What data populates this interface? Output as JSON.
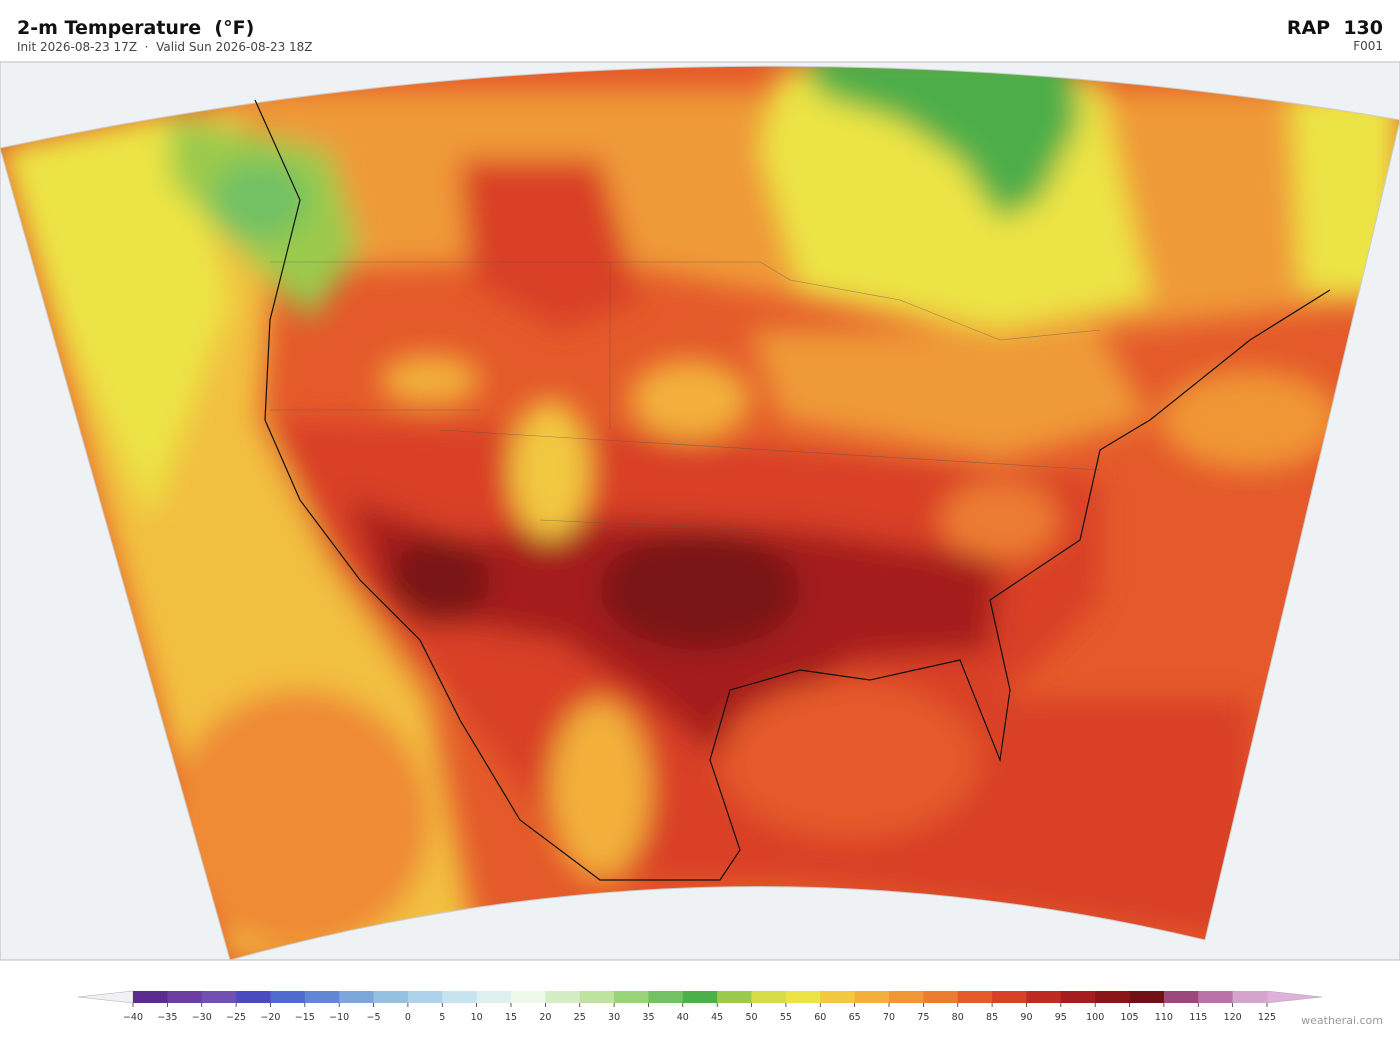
{
  "header": {
    "title": "2-m Temperature  (°F)",
    "subtitle": "Init 2026-08-23 17Z  ·  Valid Sun 2026-08-23 18Z",
    "model": "RAP  130",
    "forecast_hour": "F001"
  },
  "colorbar": {
    "ticks": [
      {
        "value": -40,
        "label": "−40"
      },
      {
        "value": -35,
        "label": "−35"
      },
      {
        "value": -30,
        "label": "−30"
      },
      {
        "value": -25,
        "label": "−25"
      },
      {
        "value": -20,
        "label": "−20"
      },
      {
        "value": -15,
        "label": "−15"
      },
      {
        "value": -10,
        "label": "−10"
      },
      {
        "value": -5,
        "label": "−5"
      },
      0,
      5,
      10,
      15,
      20,
      25,
      30,
      35,
      40,
      45,
      50,
      55,
      60,
      65,
      70,
      75,
      80,
      85,
      90,
      95,
      100,
      105,
      110,
      115,
      120,
      125
    ],
    "colors": [
      "#5a2d8c",
      "#6b3fa0",
      "#7050b0",
      "#4a4bc0",
      "#4f6ad0",
      "#6286d4",
      "#7aa6dc",
      "#94c1e2",
      "#add3ea",
      "#c7e3ef",
      "#def0f0",
      "#eef7ea",
      "#d6ecc4",
      "#bfe29e",
      "#99d47a",
      "#72c163",
      "#4eae4a",
      "#9bca4c",
      "#d6dd48",
      "#ece445",
      "#f2c83f",
      "#f2b03a",
      "#f09635",
      "#ec7c30",
      "#e45a2a",
      "#d94127",
      "#bf2a22",
      "#a51d1e",
      "#8b1519",
      "#6e1016",
      "#9a4a7a",
      "#bb72a8",
      "#d5a4cc"
    ]
  },
  "watermark": "weatherai.com"
}
